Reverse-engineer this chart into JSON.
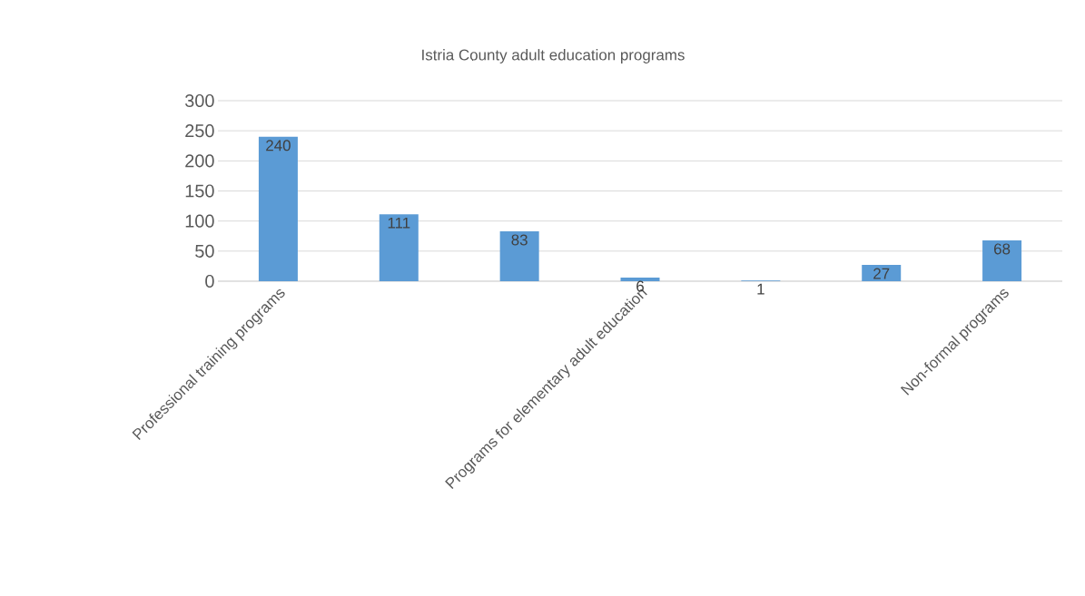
{
  "chart_data": {
    "type": "bar",
    "title": "Istria County adult education programs",
    "categories": [
      "Professional training programs",
      null,
      null,
      "Programs for elementary adult education",
      null,
      null,
      "Non-formal programs"
    ],
    "values": [
      240,
      111,
      83,
      6,
      1,
      27,
      68
    ],
    "color": "#5b9bd5",
    "ylim": [
      0,
      300
    ],
    "yticks": [
      0,
      50,
      100,
      150,
      200,
      250,
      300
    ],
    "grid": "y",
    "data_labels": true
  }
}
